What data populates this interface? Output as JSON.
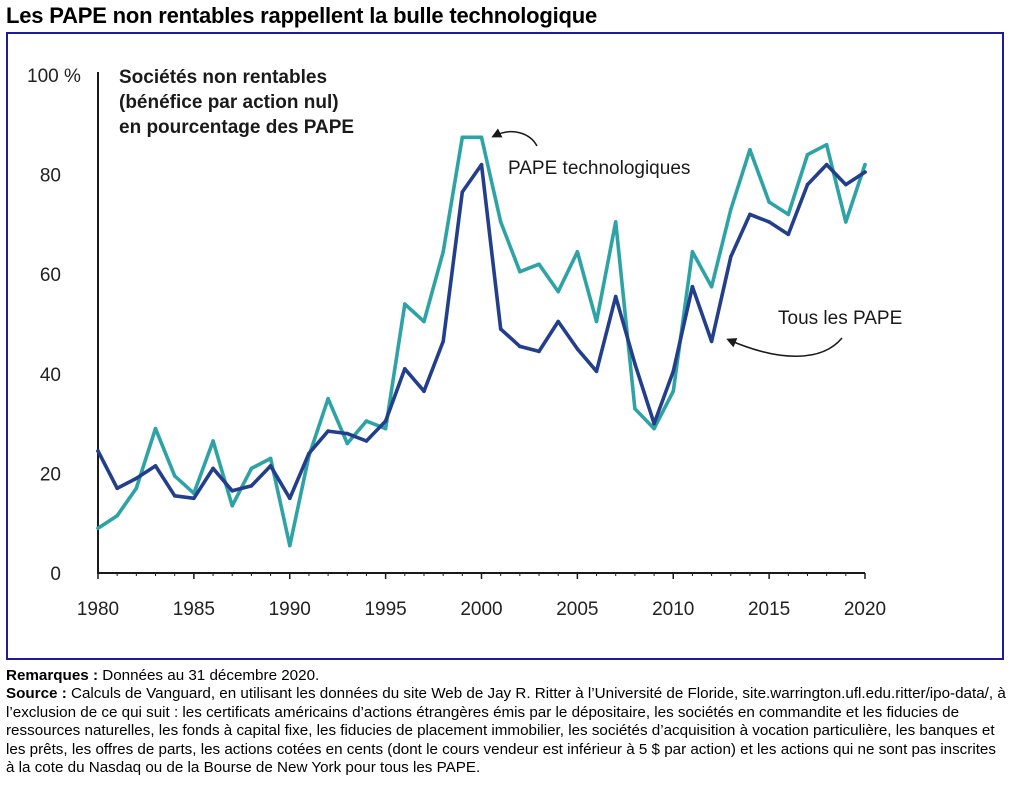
{
  "title": "Les PAPE non rentables rappellent la bulle technologique",
  "notes": {
    "remarks_label": "Remarques :",
    "remarks_text": " Données au 31 décembre 2020.",
    "source_label": "Source :",
    "source_text": " Calculs de Vanguard, en utilisant les données du site Web de Jay R. Ritter à l’Université de Floride, site.warrington.ufl.edu.ritter/ipo-data/, à l’exclusion de ce qui suit : les certificats américains d’actions étrangères émis par le dépositaire, les sociétés en commandite et les fiducies de ressources naturelles, les fonds à capital fixe, les fiducies de placement immobilier, les sociétés d’acquisition à vocation particulière, les banques et les prêts, les offres de parts, les actions cotées en cents (dont le cours vendeur est inférieur à 5 $ par action) et les actions qui ne sont pas inscrites à la cote du Nasdaq ou de la Bourse de New York pour tous les PAPE."
  },
  "colors": {
    "frame": "#1f1a96",
    "tech": "#2ea3a6",
    "all": "#233f8c",
    "axis": "#1a1a1a"
  },
  "chart_data": {
    "type": "line",
    "title": "Les PAPE non rentables rappellent la bulle technologique",
    "inner_title": [
      "Sociétés non rentables",
      "(bénéfice par action nul)",
      "en pourcentage des PAPE"
    ],
    "xlabel": "",
    "ylabel": "",
    "xlim": [
      1980,
      2020
    ],
    "ylim": [
      0,
      100
    ],
    "grid": false,
    "x_ticks": [
      1980,
      1985,
      1990,
      1995,
      2000,
      2005,
      2010,
      2015,
      2020
    ],
    "x_tick_labels": [
      "1980",
      "1985",
      "1990",
      "1995",
      "2000",
      "2005",
      "2010",
      "2015",
      "2020"
    ],
    "y_ticks": [
      0,
      20,
      40,
      60,
      80,
      100
    ],
    "y_tick_labels": [
      "0",
      "20",
      "40",
      "60",
      "80",
      "100 %"
    ],
    "x": [
      1980,
      1981,
      1982,
      1983,
      1984,
      1985,
      1986,
      1987,
      1988,
      1989,
      1990,
      1991,
      1992,
      1993,
      1994,
      1995,
      1996,
      1997,
      1998,
      1999,
      2000,
      2001,
      2002,
      2003,
      2004,
      2005,
      2006,
      2007,
      2008,
      2009,
      2010,
      2011,
      2012,
      2013,
      2014,
      2015,
      2016,
      2017,
      2018,
      2019,
      2020
    ],
    "series": [
      {
        "name": "PAPE technologiques",
        "color": "#2ea3a6",
        "values": [
          9,
          11.5,
          17,
          29,
          19.5,
          16,
          26.5,
          13.5,
          21,
          23,
          5.5,
          23.5,
          35,
          26,
          30.5,
          29,
          54,
          50.5,
          64.5,
          87.5,
          87.5,
          70.5,
          60.5,
          62,
          56.5,
          64.5,
          50.5,
          70.5,
          33,
          29,
          36.5,
          64.5,
          57.5,
          73,
          85,
          74.5,
          72,
          84,
          86,
          70.5,
          82
        ]
      },
      {
        "name": "Tous les PAPE",
        "color": "#233f8c",
        "values": [
          24.5,
          17,
          19,
          21.5,
          15.5,
          15,
          21,
          16.5,
          17.5,
          21.5,
          15,
          24,
          28.5,
          28,
          26.5,
          30.5,
          41,
          36.5,
          46.5,
          76.5,
          82,
          49,
          45.5,
          44.5,
          50.5,
          45,
          40.5,
          55.5,
          42,
          30,
          40.5,
          57.5,
          46.5,
          63.5,
          72,
          70.5,
          68,
          78,
          82,
          78,
          80.5
        ]
      }
    ],
    "annotations": [
      {
        "text": "PAPE technologiques",
        "series": "PAPE technologiques",
        "points_to_year": 2000
      },
      {
        "text": "Tous les PAPE",
        "series": "Tous les PAPE",
        "points_to_year": 2012
      }
    ],
    "legend": "none (direct labels with arrows)"
  }
}
